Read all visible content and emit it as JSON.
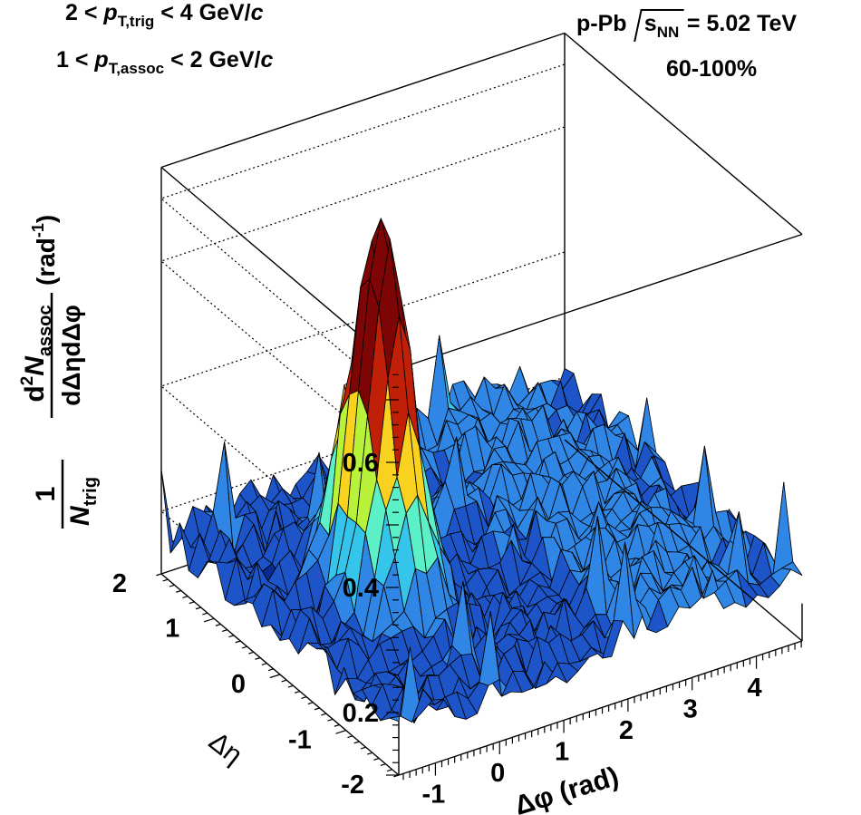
{
  "annotations": {
    "trig_low": "2 <",
    "trig_p": "p",
    "trig_sub": "T,trig",
    "trig_high": "< 4 GeV/",
    "trig_c": "c",
    "assoc_low": "1 <",
    "assoc_p": "p",
    "assoc_sub": "T,assoc",
    "assoc_high": "< 2 GeV/",
    "assoc_c": "c",
    "system": "p-Pb",
    "s": "s",
    "s_sub": "NN",
    "energy": "= 5.02 TeV",
    "centrality": "60-100%"
  },
  "ylabel": {
    "one": "1",
    "n_trig": "N",
    "n_trig_sub": "trig",
    "d2": "d",
    "d2_sup": "2",
    "n_assoc": "N",
    "n_assoc_sub": "assoc",
    "denominator": "dΔηdΔφ",
    "unit": "(rad",
    "unit_sup": "-1",
    "unit_close": ")"
  },
  "chart_data": {
    "type": "surface",
    "xlabel": "Δφ (rad)",
    "ylabel_axis": "Δη",
    "zlabel": "1/N_trig d²N_assoc/dΔηdΔφ (rad^-1)",
    "x_range": [
      -1.5708,
      4.7124
    ],
    "y_range": [
      -1.8,
      1.8
    ],
    "z_range": [
      0.1,
      0.75
    ],
    "x_ticks": [
      "-1",
      "0",
      "1",
      "2",
      "3",
      "4"
    ],
    "y_ticks": [
      "-2",
      "-1",
      "0",
      "1",
      "2"
    ],
    "z_ticks": [
      "0.2",
      "0.4",
      "0.6"
    ],
    "grid": "dotted back walls",
    "model": {
      "baseline": 0.175,
      "near_side_peak": {
        "at_dphi": 0,
        "at_deta": 0,
        "height": 0.59,
        "width_dphi": 0.32,
        "width_deta": 0.36
      },
      "away_side_ridge": {
        "at_dphi": 3.1416,
        "amplitude": 0.055,
        "width_dphi": 1.0
      },
      "noise_amplitude": 0.035
    },
    "colormap": [
      "#0a2a90",
      "#1d55c8",
      "#2f86e4",
      "#36c5ea",
      "#5cf0c8",
      "#b8f23a",
      "#f8d21e",
      "#f46a10",
      "#c01f08",
      "#7e0505"
    ]
  }
}
